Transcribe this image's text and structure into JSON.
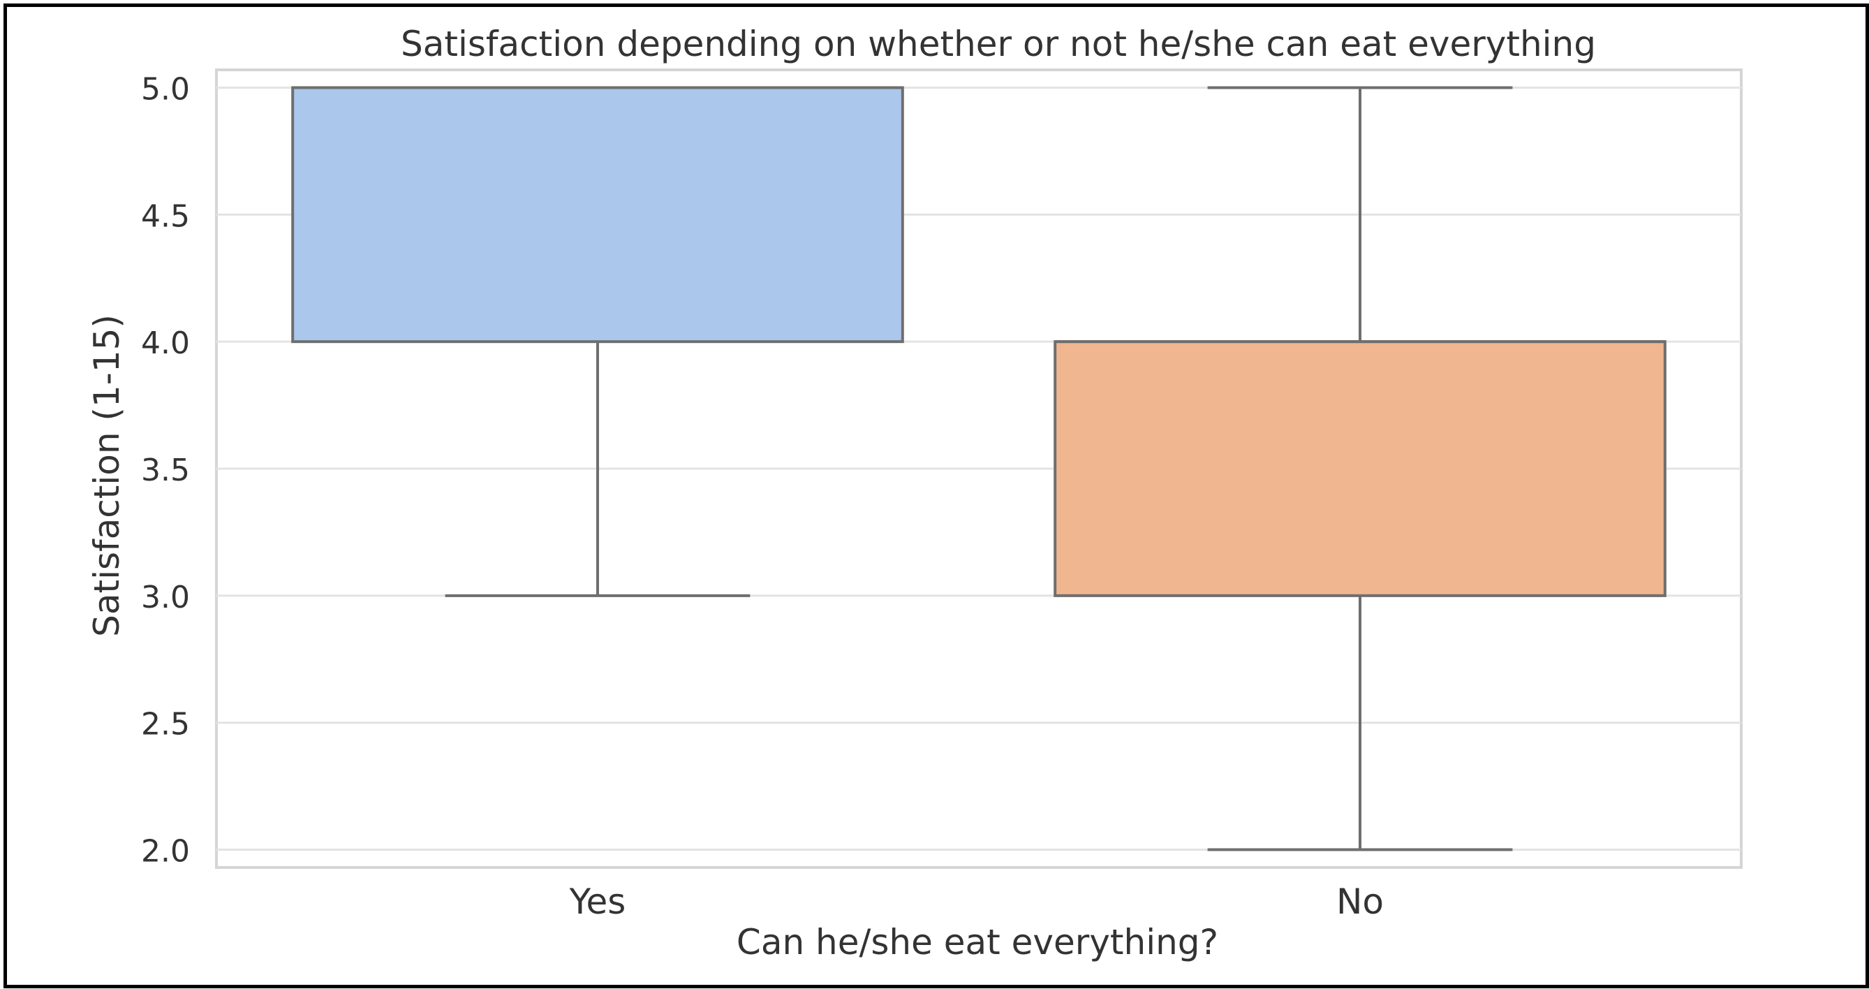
{
  "chart_data": {
    "type": "box",
    "title": "Satisfaction depending on whether or not he/she can eat everything",
    "xlabel": "Can he/she eat everything?",
    "ylabel": "Satisfaction (1-15)",
    "categories": [
      "Yes",
      "No"
    ],
    "ylim": [
      1.93,
      5.07
    ],
    "yticks": [
      2.0,
      2.5,
      3.0,
      3.5,
      4.0,
      4.5,
      5.0
    ],
    "ytick_labels": [
      "2.0",
      "2.5",
      "3.0",
      "3.5",
      "4.0",
      "4.5",
      "5.0"
    ],
    "grid": true,
    "boxes": [
      {
        "category": "Yes",
        "whisker_low": 3.0,
        "q1": 4.0,
        "median": 5.0,
        "q3": 5.0,
        "whisker_high": 5.0,
        "color": "#abc8ec"
      },
      {
        "category": "No",
        "whisker_low": 2.0,
        "q1": 3.0,
        "median": 4.0,
        "q3": 4.0,
        "whisker_high": 5.0,
        "color": "#f0b690"
      }
    ],
    "colors": {
      "box_edge": "#6e6e6e",
      "grid": "#e3e3e3",
      "axes_border": "#d5d5d5",
      "text": "#333333"
    }
  }
}
